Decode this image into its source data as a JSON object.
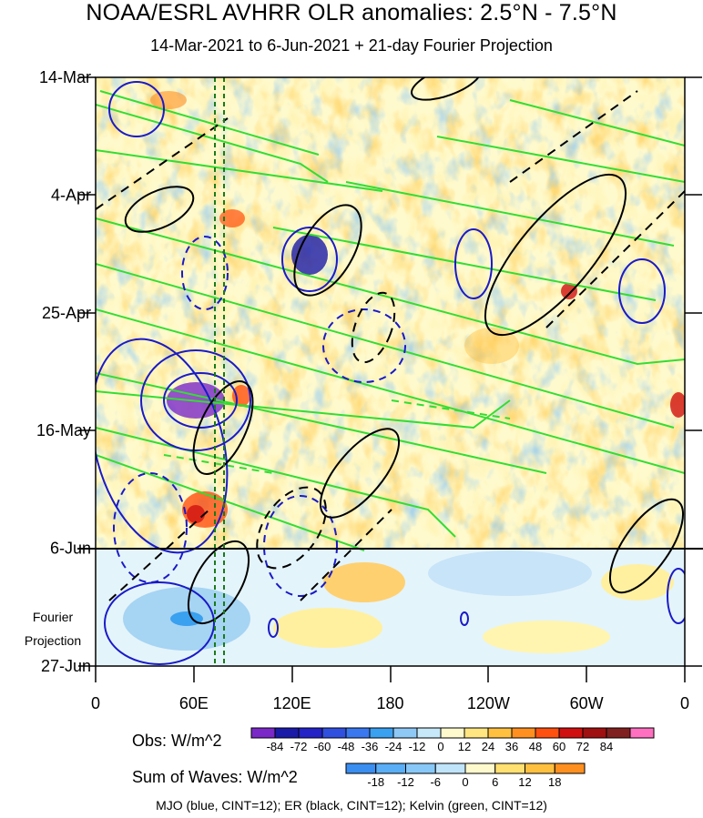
{
  "title": "NOAA/ESRL AVHRR OLR anomalies: 2.5°N - 7.5°N",
  "subtitle": "14-Mar-2021 to 6-Jun-2021 + 21-day Fourier Projection",
  "projection_label": [
    "Fourier",
    "Projection"
  ],
  "obs_legend": {
    "label": "Obs: W/m^2",
    "ticks": [
      "-84",
      "-72",
      "-60",
      "-48",
      "-36",
      "-24",
      "-12",
      "0",
      "12",
      "24",
      "36",
      "48",
      "60",
      "72",
      "84"
    ],
    "colors": [
      "#7a28c8",
      "#1a1aa8",
      "#2323c8",
      "#3050e0",
      "#3a78f0",
      "#3aa0f0",
      "#8ec8f5",
      "#c6e8f8",
      "#fffacd",
      "#ffe680",
      "#ffc040",
      "#ff9020",
      "#ff5010",
      "#d01010",
      "#a01010",
      "#802020",
      "#ff70c0"
    ]
  },
  "wave_legend": {
    "label": "Sum of Waves: W/m^2",
    "ticks": [
      "-18",
      "-12",
      "-6",
      "0",
      "6",
      "12",
      "18"
    ],
    "colors": [
      "#3a8ef0",
      "#5aaef5",
      "#88c8f8",
      "#c0e4fa",
      "#fffacd",
      "#ffe070",
      "#ffc040",
      "#ff9020"
    ]
  },
  "footer_note": "MJO (blue, CINT=12); ER (black, CINT=12); Kelvin (green, CINT=12)",
  "chart_data": {
    "type": "heatmap",
    "x_axis": {
      "ticks": [
        "0",
        "60E",
        "120E",
        "180",
        "120W",
        "60W",
        "0"
      ]
    },
    "y_axis": {
      "ticks": [
        "14-Mar",
        "4-Apr",
        "25-Apr",
        "16-May",
        "6-Jun",
        "27-Jun"
      ],
      "inverted": true
    },
    "observed_period": [
      "14-Mar-2021",
      "6-Jun-2021"
    ],
    "projection_period_days": 21,
    "overlays": [
      {
        "name": "MJO",
        "color": "blue",
        "cint": 12
      },
      {
        "name": "ER",
        "color": "black",
        "cint": 12
      },
      {
        "name": "Kelvin",
        "color": "green",
        "cint": 12
      }
    ],
    "reference_meridians_lon": [
      73,
      80
    ]
  }
}
